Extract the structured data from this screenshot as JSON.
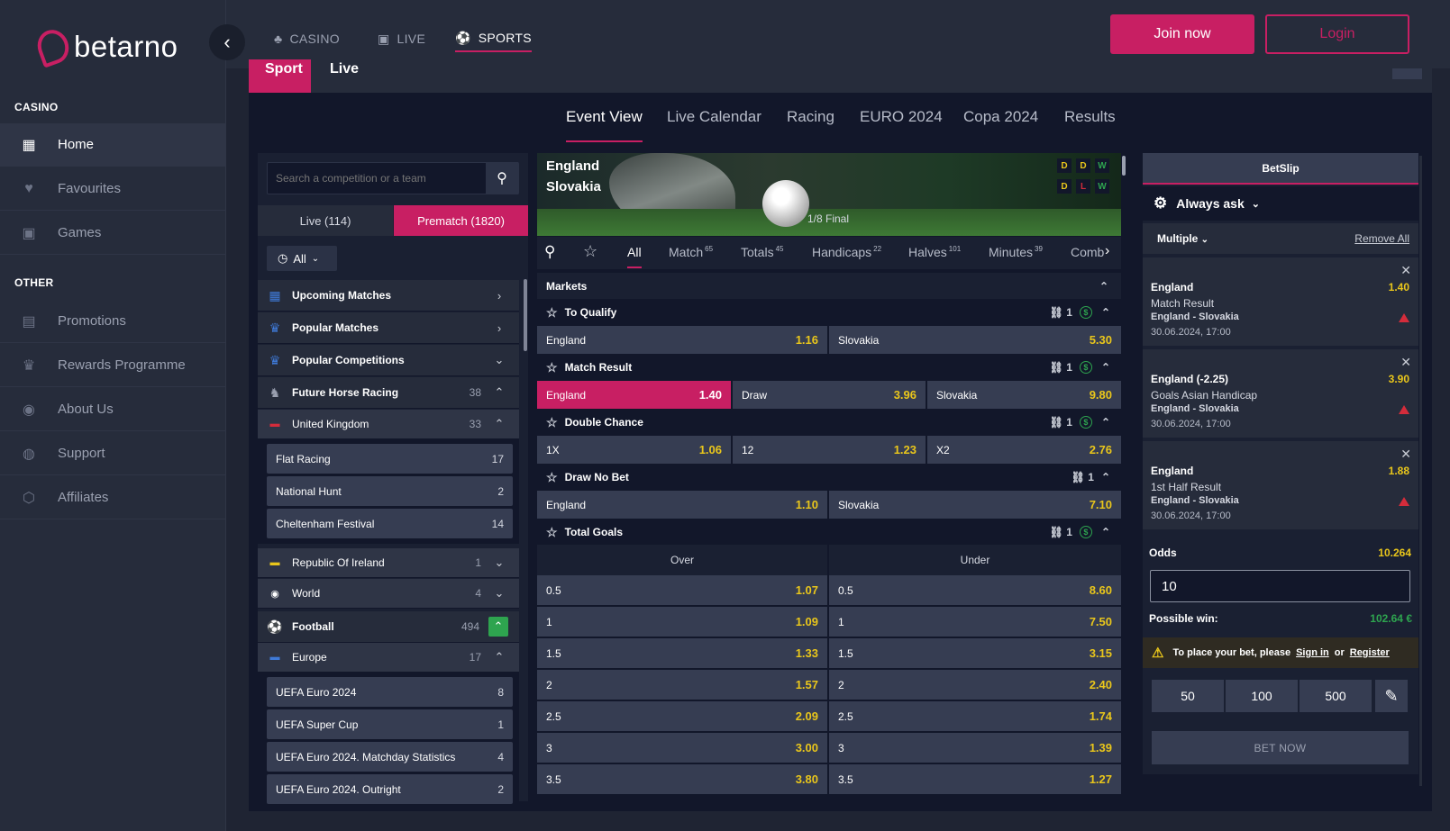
{
  "brand": {
    "name": "betarno"
  },
  "sidebar": {
    "casino_head": "CASINO",
    "other_head": "OTHER",
    "casino_items": [
      {
        "label": "Home"
      },
      {
        "label": "Favourites"
      },
      {
        "label": "Games"
      }
    ],
    "other_items": [
      {
        "label": "Promotions"
      },
      {
        "label": "Rewards Programme"
      },
      {
        "label": "About Us"
      },
      {
        "label": "Support"
      },
      {
        "label": "Affiliates"
      }
    ]
  },
  "topnav": [
    {
      "label": "CASINO"
    },
    {
      "label": "LIVE"
    },
    {
      "label": "SPORTS"
    }
  ],
  "auth": {
    "join": "Join now",
    "login": "Login"
  },
  "sport_tabs": [
    {
      "label": "Sport"
    },
    {
      "label": "Live"
    }
  ],
  "event_tabs": [
    {
      "label": "Event View"
    },
    {
      "label": "Live Calendar"
    },
    {
      "label": "Racing"
    },
    {
      "label": "EURO 2024"
    },
    {
      "label": "Copa 2024"
    },
    {
      "label": "Results"
    }
  ],
  "left": {
    "search_placeholder": "Search a competition or a team",
    "live_tab": "Live (114)",
    "prematch_tab": "Prematch (1820)",
    "filter": "All",
    "menu": [
      {
        "label": "Upcoming Matches"
      },
      {
        "label": "Popular Matches"
      },
      {
        "label": "Popular Competitions"
      }
    ],
    "horse": {
      "label": "Future Horse Racing",
      "count": "38"
    },
    "uk": {
      "label": "United Kingdom",
      "count": "33"
    },
    "uk_sub": [
      {
        "label": "Flat Racing",
        "count": "17"
      },
      {
        "label": "National Hunt",
        "count": "2"
      },
      {
        "label": "Cheltenham Festival",
        "count": "14"
      }
    ],
    "roi": {
      "label": "Republic Of Ireland",
      "count": "1"
    },
    "world": {
      "label": "World",
      "count": "4"
    },
    "football": {
      "label": "Football",
      "count": "494"
    },
    "europe": {
      "label": "Europe",
      "count": "17"
    },
    "eu_sub": [
      {
        "label": "UEFA Euro 2024",
        "count": "8"
      },
      {
        "label": "UEFA Super Cup",
        "count": "1"
      },
      {
        "label": "UEFA Euro 2024. Matchday Statistics",
        "count": "4"
      },
      {
        "label": "UEFA Euro 2024. Outright",
        "count": "2"
      }
    ]
  },
  "event": {
    "home": "England",
    "away": "Slovakia",
    "stage": "1/8 Final",
    "home_form": [
      "D",
      "D",
      "W"
    ],
    "away_form": [
      "D",
      "L",
      "W"
    ]
  },
  "market_tabs": [
    {
      "label": "All",
      "count": ""
    },
    {
      "label": "Match",
      "count": "65"
    },
    {
      "label": "Totals",
      "count": "45"
    },
    {
      "label": "Handicaps",
      "count": "22"
    },
    {
      "label": "Halves",
      "count": "101"
    },
    {
      "label": "Minutes",
      "count": "39"
    },
    {
      "label": "Comb",
      "count": ""
    }
  ],
  "markets_label": "Markets",
  "markets": {
    "qualify": {
      "title": "To Qualify",
      "links": "1",
      "o1": {
        "name": "England",
        "odd": "1.16"
      },
      "o2": {
        "name": "Slovakia",
        "odd": "5.30"
      }
    },
    "result": {
      "title": "Match Result",
      "links": "1",
      "o1": {
        "name": "England",
        "odd": "1.40"
      },
      "o2": {
        "name": "Draw",
        "odd": "3.96"
      },
      "o3": {
        "name": "Slovakia",
        "odd": "9.80"
      }
    },
    "double": {
      "title": "Double Chance",
      "links": "1",
      "o1": {
        "name": "1X",
        "odd": "1.06"
      },
      "o2": {
        "name": "12",
        "odd": "1.23"
      },
      "o3": {
        "name": "X2",
        "odd": "2.76"
      }
    },
    "dnb": {
      "title": "Draw No Bet",
      "links": "1",
      "o1": {
        "name": "England",
        "odd": "1.10"
      },
      "o2": {
        "name": "Slovakia",
        "odd": "7.10"
      }
    },
    "goals": {
      "title": "Total Goals",
      "links": "1",
      "over": "Over",
      "under": "Under",
      "rows": [
        {
          "line": "0.5",
          "over": "1.07",
          "under": "8.60"
        },
        {
          "line": "1",
          "over": "1.09",
          "under": "7.50"
        },
        {
          "line": "1.5",
          "over": "1.33",
          "under": "3.15"
        },
        {
          "line": "2",
          "over": "1.57",
          "under": "2.40"
        },
        {
          "line": "2.5",
          "over": "2.09",
          "under": "1.74"
        },
        {
          "line": "3",
          "over": "3.00",
          "under": "1.39"
        },
        {
          "line": "3.5",
          "over": "3.80",
          "under": "1.27"
        }
      ]
    }
  },
  "betslip": {
    "title": "BetSlip",
    "always_ask": "Always ask",
    "multiple": "Multiple",
    "remove_all": "Remove All",
    "bets": [
      {
        "team": "England",
        "price": "1.40",
        "market": "Match Result",
        "event": "England - Slovakia",
        "date": "30.06.2024, 17:00"
      },
      {
        "team": "England (-2.25)",
        "price": "3.90",
        "market": "Goals Asian Handicap",
        "event": "England - Slovakia",
        "date": "30.06.2024, 17:00"
      },
      {
        "team": "England",
        "price": "1.88",
        "market": "1st Half Result",
        "event": "England - Slovakia",
        "date": "30.06.2024, 17:00"
      }
    ],
    "odds_label": "Odds",
    "odds_value": "10.264",
    "stake": "10",
    "possible_win_label": "Possible win:",
    "possible_win_value": "102.64 €",
    "notice_text": "To place your bet, please",
    "sign_in": "Sign in",
    "or": "or",
    "register": "Register",
    "chips": [
      "50",
      "100",
      "500"
    ],
    "bet_now": "BET NOW"
  }
}
